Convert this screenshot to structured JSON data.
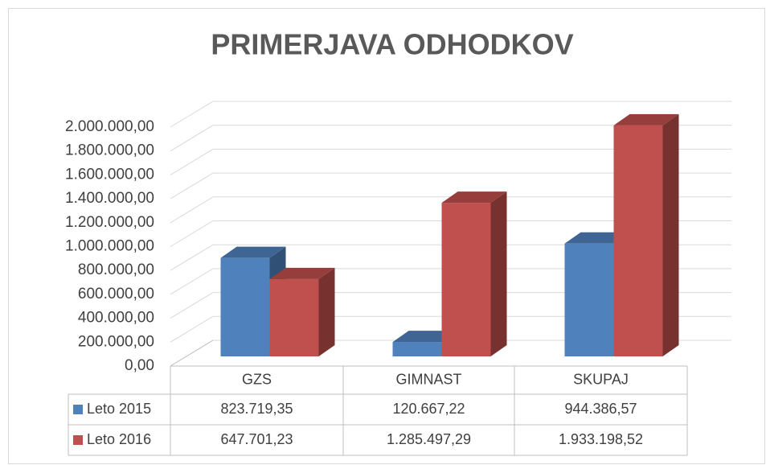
{
  "chart_data": {
    "type": "bar3d",
    "title": "PRIMERJAVA ODHODKOV",
    "categories": [
      "GZS",
      "GIMNAST",
      "SKUPAJ"
    ],
    "series": [
      {
        "name": "Leto 2015",
        "color": "#4f81bd",
        "values": [
          823719.35,
          120667.22,
          944386.57
        ],
        "value_labels": [
          "823.719,35",
          "120.667,22",
          "944.386,57"
        ]
      },
      {
        "name": "Leto 2016",
        "color": "#c0504d",
        "values": [
          647701.23,
          1285497.29,
          1933198.52
        ],
        "value_labels": [
          "647.701,23",
          "1.285.497,29",
          "1.933.198,52"
        ]
      }
    ],
    "ylim": [
      0,
      2000000
    ],
    "yticks": [
      {
        "value": 0,
        "label": "0,00"
      },
      {
        "value": 200000,
        "label": "200.000,00"
      },
      {
        "value": 400000,
        "label": "400.000,00"
      },
      {
        "value": 600000,
        "label": "600.000,00"
      },
      {
        "value": 800000,
        "label": "800.000,00"
      },
      {
        "value": 1000000,
        "label": "1.000.000,00"
      },
      {
        "value": 1200000,
        "label": "1.200.000,00"
      },
      {
        "value": 1400000,
        "label": "1.400.000,00"
      },
      {
        "value": 1600000,
        "label": "1.600.000,00"
      },
      {
        "value": 1800000,
        "label": "1.800.000,00"
      },
      {
        "value": 2000000,
        "label": "2.000.000,00"
      }
    ],
    "grid": true,
    "data_table": true
  }
}
